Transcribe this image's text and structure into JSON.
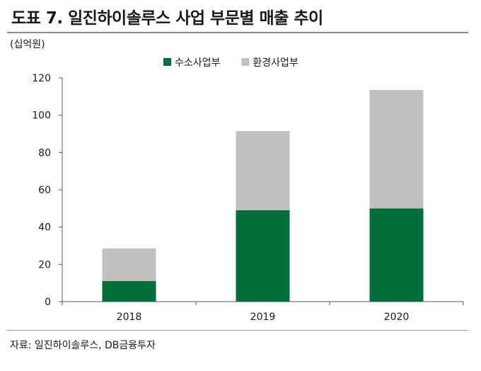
{
  "title": "도표 7. 일진하이솔루스 사업 부문별 매출 추이",
  "unit_label": "(십억원)",
  "source": "자료: 일진하이솔루스, DB금융투자",
  "chart_data": {
    "type": "bar",
    "stacked": true,
    "categories": [
      "2018",
      "2019",
      "2020"
    ],
    "series": [
      {
        "name": "수소사업부",
        "color": "#006f3c",
        "values": [
          11,
          49,
          50
        ]
      },
      {
        "name": "환경사업부",
        "color": "#c0c0c0",
        "values": [
          17.5,
          42.5,
          63.5
        ]
      }
    ],
    "ylim": [
      0,
      120
    ],
    "yticks": [
      "0",
      "20",
      "40",
      "60",
      "80",
      "100",
      "120"
    ],
    "grid": false,
    "legend_position": "top-center",
    "xlabel": "",
    "ylabel": ""
  }
}
